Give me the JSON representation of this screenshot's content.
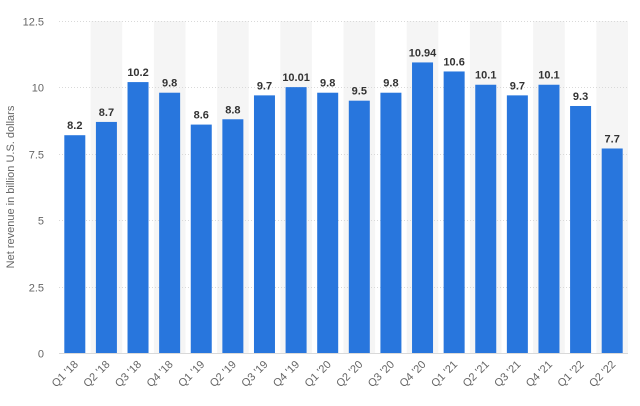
{
  "chart_data": {
    "type": "bar",
    "categories": [
      "Q1 '18",
      "Q2 '18",
      "Q3 '18",
      "Q4 '18",
      "Q1 '19",
      "Q2 '19",
      "Q3 '19",
      "Q4 '19",
      "Q1 '20",
      "Q2 '20",
      "Q3 '20",
      "Q4 '20",
      "Q1 '21",
      "Q2 '21",
      "Q3 '21",
      "Q4 '21",
      "Q1 '22",
      "Q2 '22"
    ],
    "values": [
      8.2,
      8.7,
      10.2,
      9.8,
      8.6,
      8.8,
      9.7,
      10.01,
      9.8,
      9.5,
      9.8,
      10.94,
      10.6,
      10.1,
      9.7,
      10.1,
      9.3,
      7.7
    ],
    "value_labels": [
      "8.2",
      "8.7",
      "10.2",
      "9.8",
      "8.6",
      "8.8",
      "9.7",
      "10.01",
      "9.8",
      "9.5",
      "9.8",
      "10.94",
      "10.6",
      "10.1",
      "9.7",
      "10.1",
      "9.3",
      "7.7"
    ],
    "title": "",
    "xlabel": "",
    "ylabel": "Net revenue in billion U.S. dollars",
    "ylim": [
      0,
      12.5
    ],
    "yticks": [
      0,
      2.5,
      5,
      7.5,
      10,
      12.5
    ],
    "ytick_labels": [
      "0",
      "2.5",
      "5",
      "7.5",
      "10",
      "12.5"
    ],
    "grid": true,
    "legend": "none",
    "colors": {
      "bar": "#2876dd",
      "band": "#f5f5f5",
      "grid": "#d9d9d9",
      "axis": "#666666",
      "label": "#333333"
    }
  }
}
